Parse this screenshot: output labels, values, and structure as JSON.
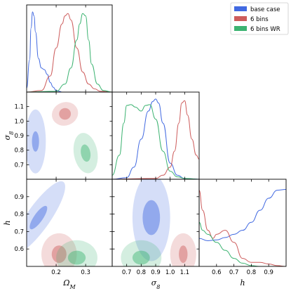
{
  "chart_data": {
    "type": "corner",
    "parameters": [
      {
        "key": "om",
        "label": "ΩM",
        "label_main": "Ω",
        "label_sub": "M",
        "range": [
          0.1,
          0.39
        ],
        "ticks": [
          0.2,
          0.3
        ],
        "tick_labels": [
          "0.2",
          "0.3"
        ]
      },
      {
        "key": "s8",
        "label": "σ8",
        "label_main": "σ",
        "label_sub": "8",
        "range": [
          0.6,
          1.2
        ],
        "ticks": [
          0.7,
          0.8,
          0.9,
          1.0,
          1.1
        ],
        "tick_labels": [
          "0.7",
          "0.8",
          "0.9",
          "1.0",
          "1.1"
        ]
      },
      {
        "key": "h",
        "label": "h",
        "label_main": "h",
        "label_sub": "",
        "range": [
          0.5,
          1.0
        ],
        "ticks": [
          0.6,
          0.7,
          0.8,
          0.9
        ],
        "tick_labels": [
          "0.6",
          "0.7",
          "0.8",
          "0.9"
        ]
      }
    ],
    "legend": {
      "placement": "top-right",
      "entries": [
        "base case",
        "6 bins",
        "6 bins WR"
      ]
    },
    "series": [
      {
        "name": "base case",
        "color": "#4169e1",
        "marginals": {
          "om": {
            "x": [
              0.1,
              0.11,
              0.115,
              0.12,
              0.125,
              0.13,
              0.14,
              0.15,
              0.16,
              0.17,
              0.18,
              0.19,
              0.2,
              0.21,
              0.22,
              0.25,
              0.3,
              0.39
            ],
            "y": [
              0.05,
              0.4,
              0.8,
              1.0,
              0.95,
              0.75,
              0.42,
              0.3,
              0.28,
              0.22,
              0.12,
              0.06,
              0.02,
              0.01,
              0,
              0,
              0,
              0
            ]
          },
          "s8": {
            "x": [
              0.6,
              0.7,
              0.75,
              0.8,
              0.85,
              0.88,
              0.9,
              0.92,
              0.95,
              1.0,
              1.05,
              1.1,
              1.2
            ],
            "y": [
              0,
              0.02,
              0.15,
              0.5,
              0.85,
              0.97,
              1.0,
              0.95,
              0.7,
              0.2,
              0.05,
              0.01,
              0
            ]
          },
          "h": {
            "x": [
              0.5,
              0.55,
              0.6,
              0.65,
              0.7,
              0.75,
              0.8,
              0.85,
              0.9,
              0.95,
              1.0
            ],
            "y": [
              0.35,
              0.32,
              0.33,
              0.36,
              0.4,
              0.45,
              0.55,
              0.7,
              0.85,
              0.95,
              0.96
            ]
          }
        },
        "contours": [
          {
            "params": [
              "om",
              "s8"
            ],
            "center": [
              0.13,
              0.86
            ],
            "outer": [
              0.035,
              0.22
            ],
            "inner": [
              0.012,
              0.07
            ],
            "rotate": 0
          },
          {
            "params": [
              "om",
              "h"
            ],
            "center": [
              0.14,
              0.78
            ],
            "outer": [
              0.04,
              0.25
            ],
            "inner": [
              0.015,
              0.08
            ],
            "rotate": 35
          },
          {
            "params": [
              "s8",
              "h"
            ],
            "center": [
              0.87,
              0.78
            ],
            "outer": [
              0.13,
              0.25
            ],
            "inner": [
              0.06,
              0.1
            ],
            "rotate": 0
          }
        ]
      },
      {
        "name": "6 bins",
        "color": "#cd5c5c",
        "marginals": {
          "om": {
            "x": [
              0.1,
              0.15,
              0.18,
              0.2,
              0.22,
              0.23,
              0.24,
              0.25,
              0.27,
              0.29,
              0.31,
              0.33,
              0.35,
              0.39
            ],
            "y": [
              0,
              0.02,
              0.2,
              0.55,
              0.85,
              0.95,
              0.98,
              0.9,
              0.55,
              0.25,
              0.1,
              0.04,
              0.01,
              0
            ]
          },
          "s8": {
            "x": [
              0.6,
              0.9,
              0.95,
              1.0,
              1.03,
              1.06,
              1.08,
              1.1,
              1.12,
              1.15,
              1.18,
              1.2
            ],
            "y": [
              0,
              0.01,
              0.05,
              0.15,
              0.35,
              0.7,
              0.95,
              0.98,
              0.8,
              0.5,
              0.3,
              0.25
            ]
          },
          "h": {
            "x": [
              0.5,
              0.52,
              0.55,
              0.58,
              0.6,
              0.65,
              0.7,
              0.75,
              0.8,
              0.85,
              0.9,
              0.95,
              1.0
            ],
            "y": [
              0.95,
              0.7,
              0.45,
              0.35,
              0.4,
              0.45,
              0.3,
              0.1,
              0.05,
              0.05,
              0.03,
              0.01,
              0
            ]
          }
        },
        "contours": [
          {
            "params": [
              "om",
              "s8"
            ],
            "center": [
              0.23,
              1.05
            ],
            "outer": [
              0.045,
              0.08
            ],
            "inner": [
              0.02,
              0.04
            ],
            "rotate": -20
          },
          {
            "params": [
              "om",
              "h"
            ],
            "center": [
              0.21,
              0.57
            ],
            "outer": [
              0.06,
              0.12
            ],
            "inner": [
              0.025,
              0.05
            ],
            "rotate": 0
          },
          {
            "params": [
              "s8",
              "h"
            ],
            "center": [
              1.09,
              0.57
            ],
            "outer": [
              0.09,
              0.12
            ],
            "inner": [
              0.03,
              0.05
            ],
            "rotate": 0
          }
        ]
      },
      {
        "name": "6 bins WR",
        "color": "#3cb371",
        "marginals": {
          "om": {
            "x": [
              0.1,
              0.2,
              0.23,
              0.25,
              0.27,
              0.28,
              0.29,
              0.3,
              0.31,
              0.32,
              0.34,
              0.36,
              0.39
            ],
            "y": [
              0,
              0.01,
              0.1,
              0.3,
              0.65,
              0.85,
              0.98,
              0.95,
              0.65,
              0.35,
              0.1,
              0.02,
              0
            ]
          },
          "s8": {
            "x": [
              0.6,
              0.65,
              0.68,
              0.7,
              0.73,
              0.76,
              0.8,
              0.83,
              0.86,
              0.9,
              0.95,
              1.0,
              1.05,
              1.1,
              1.2
            ],
            "y": [
              0.05,
              0.3,
              0.7,
              0.92,
              0.93,
              0.9,
              0.85,
              0.92,
              0.93,
              0.75,
              0.35,
              0.1,
              0.03,
              0.01,
              0
            ]
          },
          "h": {
            "x": [
              0.5,
              0.52,
              0.55,
              0.6,
              0.65,
              0.7,
              0.75,
              0.8,
              0.85,
              0.9,
              1.0
            ],
            "y": [
              0.55,
              0.45,
              0.4,
              0.3,
              0.2,
              0.1,
              0.04,
              0.01,
              0,
              0,
              0
            ]
          }
        },
        "contours": [
          {
            "params": [
              "om",
              "s8"
            ],
            "center": [
              0.3,
              0.78
            ],
            "outer": [
              0.04,
              0.14
            ],
            "inner": [
              0.016,
              0.06
            ],
            "rotate": -10
          },
          {
            "params": [
              "om",
              "h"
            ],
            "center": [
              0.27,
              0.55
            ],
            "outer": [
              0.07,
              0.1
            ],
            "inner": [
              0.03,
              0.04
            ],
            "rotate": 0
          },
          {
            "params": [
              "s8",
              "h"
            ],
            "center": [
              0.8,
              0.55
            ],
            "outer": [
              0.14,
              0.1
            ],
            "inner": [
              0.06,
              0.04
            ],
            "rotate": 0
          }
        ]
      }
    ]
  }
}
